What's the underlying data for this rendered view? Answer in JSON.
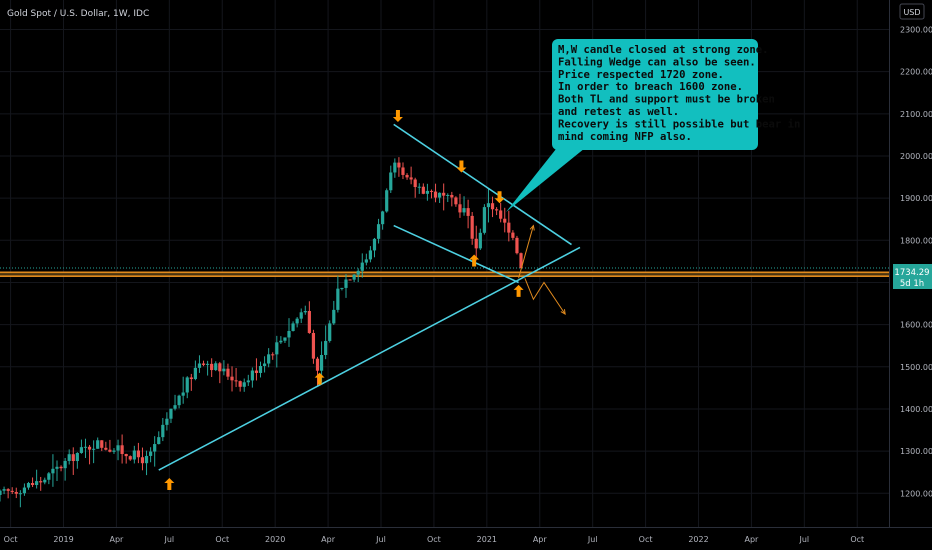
{
  "header": {
    "symbol_title": "Gold Spot / U.S. Dollar, 1W, IDC",
    "currency": "USD"
  },
  "price_axis": {
    "ticks": [
      {
        "value": 1200,
        "label": "1200.00"
      },
      {
        "value": 1300,
        "label": "1300.00"
      },
      {
        "value": 1400,
        "label": "1400.00"
      },
      {
        "value": 1500,
        "label": "1500.00"
      },
      {
        "value": 1600,
        "label": "1600.00"
      },
      {
        "value": 1700,
        "label": "1700.00"
      },
      {
        "value": 1800,
        "label": "1800.00"
      },
      {
        "value": 1900,
        "label": "1900.00"
      },
      {
        "value": 2000,
        "label": "2000.00"
      },
      {
        "value": 2100,
        "label": "2100.00"
      },
      {
        "value": 2200,
        "label": "2200.00"
      },
      {
        "value": 2300,
        "label": "2300.00"
      }
    ],
    "current_price": "1734.29",
    "countdown": "5d 1h"
  },
  "time_axis": {
    "ticks": [
      {
        "t": 2018.75,
        "label": "Oct"
      },
      {
        "t": 2019.0,
        "label": "2019"
      },
      {
        "t": 2019.25,
        "label": "Apr"
      },
      {
        "t": 2019.5,
        "label": "Jul"
      },
      {
        "t": 2019.75,
        "label": "Oct"
      },
      {
        "t": 2020.0,
        "label": "2020"
      },
      {
        "t": 2020.25,
        "label": "Apr"
      },
      {
        "t": 2020.5,
        "label": "Jul"
      },
      {
        "t": 2020.75,
        "label": "Oct"
      },
      {
        "t": 2021.0,
        "label": "2021"
      },
      {
        "t": 2021.25,
        "label": "Apr"
      },
      {
        "t": 2021.5,
        "label": "Jul"
      },
      {
        "t": 2021.75,
        "label": "Oct"
      },
      {
        "t": 2022.0,
        "label": "2022"
      },
      {
        "t": 2022.25,
        "label": "Apr"
      },
      {
        "t": 2022.5,
        "label": "Jul"
      },
      {
        "t": 2022.75,
        "label": "Oct"
      }
    ]
  },
  "annotation": {
    "lines": [
      "M,W candle closed at strong zone.",
      "Falling Wedge can also be seen.",
      "Price respected 1720 zone.",
      "In order to breach 1600 zone.",
      "Both TL and support must be broken",
      "and retest as well.",
      "Recovery is still possible but bear in",
      "mind coming NFP also."
    ]
  },
  "chart_data": {
    "type": "candlestick",
    "title": "Gold Spot / U.S. Dollar, 1W, IDC",
    "price_range": [
      1120,
      2370
    ],
    "time_range": [
      2018.7,
      2022.9
    ],
    "colors": {
      "up": "#26a69a",
      "down": "#ef5350",
      "trendline": "#4dd0e1",
      "support": "#e08a1e",
      "arrow": "#ff9800",
      "annotation_bg": "#12bfbf"
    },
    "anchors": [
      {
        "t": 2018.7,
        "p": 1196
      },
      {
        "t": 2018.9,
        "p": 1230
      },
      {
        "t": 2019.05,
        "p": 1290
      },
      {
        "t": 2019.15,
        "p": 1320
      },
      {
        "t": 2019.4,
        "p": 1278
      },
      {
        "t": 2019.52,
        "p": 1405
      },
      {
        "t": 2019.65,
        "p": 1520
      },
      {
        "t": 2019.85,
        "p": 1460
      },
      {
        "t": 2020.02,
        "p": 1560
      },
      {
        "t": 2020.14,
        "p": 1640
      },
      {
        "t": 2020.2,
        "p": 1480
      },
      {
        "t": 2020.3,
        "p": 1690
      },
      {
        "t": 2020.45,
        "p": 1770
      },
      {
        "t": 2020.56,
        "p": 1975
      },
      {
        "t": 2020.62,
        "p": 1940
      },
      {
        "t": 2020.8,
        "p": 1900
      },
      {
        "t": 2020.9,
        "p": 1870
      },
      {
        "t": 2020.95,
        "p": 1780
      },
      {
        "t": 2021.0,
        "p": 1900
      },
      {
        "t": 2021.08,
        "p": 1840
      },
      {
        "t": 2021.18,
        "p": 1734
      }
    ],
    "resistance_trendline": [
      {
        "t": 2020.56,
        "p": 2075
      },
      {
        "t": 2021.4,
        "p": 1790
      }
    ],
    "wedge_lower_trendline": [
      {
        "t": 2020.56,
        "p": 1835
      },
      {
        "t": 2021.15,
        "p": 1700
      }
    ],
    "rising_trendline": [
      {
        "t": 2019.45,
        "p": 1255
      },
      {
        "t": 2021.44,
        "p": 1783
      }
    ],
    "support_zone": {
      "low": 1715,
      "high": 1724
    },
    "projection_up": [
      {
        "t": 2021.15,
        "p": 1710
      },
      {
        "t": 2021.22,
        "p": 1835
      }
    ],
    "projection_down": [
      {
        "t": 2021.18,
        "p": 1710
      },
      {
        "t": 2021.22,
        "p": 1660
      },
      {
        "t": 2021.27,
        "p": 1700
      },
      {
        "t": 2021.37,
        "p": 1625
      }
    ],
    "arrow_markers": [
      {
        "t": 2019.5,
        "p": 1222,
        "dir": "up"
      },
      {
        "t": 2020.21,
        "p": 1472,
        "dir": "up"
      },
      {
        "t": 2020.58,
        "p": 2095,
        "dir": "down"
      },
      {
        "t": 2020.88,
        "p": 1975,
        "dir": "down"
      },
      {
        "t": 2020.94,
        "p": 1752,
        "dir": "up"
      },
      {
        "t": 2021.06,
        "p": 1902,
        "dir": "down"
      },
      {
        "t": 2021.15,
        "p": 1680,
        "dir": "up"
      }
    ]
  }
}
